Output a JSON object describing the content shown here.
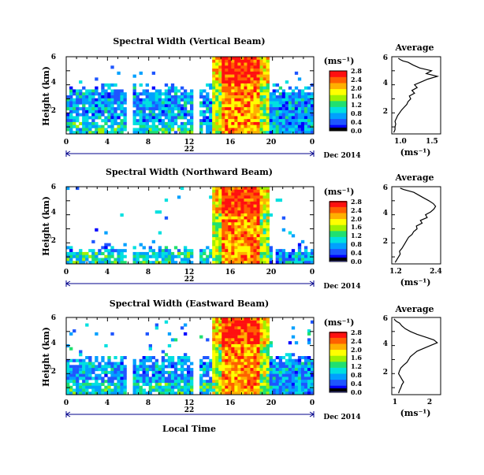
{
  "chart_data": [
    {
      "type": "heatmap",
      "title": "Spectral Width (Vertical Beam)",
      "ylabel": "Height (km)",
      "yticks": [
        "2",
        "4",
        "6"
      ],
      "xticks": [
        "0",
        "4",
        "8",
        "12",
        "16",
        "20",
        "0"
      ],
      "date_label": "22",
      "month_label": "Dec 2014",
      "colorbar": {
        "unit": "(ms⁻¹)",
        "labels": [
          "0.0",
          "0.4",
          "0.8",
          "1.2",
          "1.6",
          "2.0",
          "2.4",
          "2.8"
        ]
      },
      "profile": {
        "title": "Average",
        "xlabel": "(ms⁻¹)",
        "xticks": [
          "1.0",
          "1.5"
        ],
        "yticks": [
          "2",
          "4",
          "6"
        ],
        "xlim": [
          0.85,
          1.6
        ],
        "ylim": [
          0.5,
          6.0
        ],
        "x": [
          0.88,
          0.9,
          0.9,
          0.91,
          0.9,
          0.92,
          0.94,
          0.97,
          1.0,
          1.04,
          1.08,
          1.1,
          1.14,
          1.12,
          1.2,
          1.16,
          1.24,
          1.2,
          1.3,
          1.4,
          1.55,
          1.38,
          1.46,
          1.28,
          1.18,
          1.1,
          1.02,
          0.98,
          0.95
        ],
        "y": [
          0.6,
          0.8,
          1.0,
          1.2,
          1.4,
          1.6,
          1.8,
          2.0,
          2.2,
          2.4,
          2.6,
          2.8,
          3.0,
          3.2,
          3.4,
          3.6,
          3.8,
          4.0,
          4.2,
          4.4,
          4.6,
          4.8,
          5.0,
          5.2,
          5.4,
          5.6,
          5.7,
          5.8,
          5.9
        ]
      }
    },
    {
      "type": "heatmap",
      "title": "Spectral Width (Northward Beam)",
      "ylabel": "Height (km)",
      "yticks": [
        "2",
        "4",
        "6"
      ],
      "xticks": [
        "0",
        "4",
        "8",
        "12",
        "16",
        "20",
        "0"
      ],
      "date_label": "22",
      "month_label": "Dec 2014",
      "colorbar": {
        "unit": "(ms⁻¹)",
        "labels": [
          "0.0",
          "0.4",
          "0.8",
          "1.2",
          "1.6",
          "2.0",
          "2.4",
          "2.8"
        ]
      },
      "profile": {
        "title": "Average",
        "xlabel": "(ms⁻¹)",
        "xticks": [
          "1.2",
          "2.4"
        ],
        "yticks": [
          "2",
          "4",
          "6"
        ],
        "xlim": [
          1.05,
          2.5
        ],
        "ylim": [
          0.5,
          6.0
        ],
        "x": [
          1.15,
          1.2,
          1.25,
          1.3,
          1.28,
          1.35,
          1.4,
          1.45,
          1.5,
          1.55,
          1.65,
          1.7,
          1.8,
          1.78,
          1.95,
          1.9,
          2.1,
          2.05,
          2.2,
          2.3,
          2.35,
          2.28,
          2.15,
          2.0,
          1.85,
          1.7,
          1.55,
          1.4,
          1.3
        ],
        "y": [
          0.6,
          0.8,
          1.0,
          1.2,
          1.4,
          1.6,
          1.8,
          2.0,
          2.2,
          2.4,
          2.6,
          2.8,
          3.0,
          3.2,
          3.4,
          3.6,
          3.8,
          4.0,
          4.2,
          4.4,
          4.6,
          4.8,
          5.0,
          5.2,
          5.4,
          5.6,
          5.7,
          5.8,
          5.9
        ]
      }
    },
    {
      "type": "heatmap",
      "title": "Spectral Width (Eastward Beam)",
      "ylabel": "Height (km)",
      "yticks": [
        "2",
        "4",
        "6"
      ],
      "xticks": [
        "0",
        "4",
        "8",
        "12",
        "16",
        "20",
        "0"
      ],
      "date_label": "22",
      "month_label": "Dec 2014",
      "xlabel": "Local Time",
      "colorbar": {
        "unit": "(ms⁻¹)",
        "labels": [
          "0.0",
          "0.4",
          "0.8",
          "1.2",
          "1.6",
          "2.0",
          "2.4",
          "2.8"
        ]
      },
      "profile": {
        "title": "Average",
        "xlabel": "(ms⁻¹)",
        "xticks": [
          "1",
          "2"
        ],
        "yticks": [
          "2",
          "4",
          "6"
        ],
        "xlim": [
          0.85,
          2.3
        ],
        "ylim": [
          0.5,
          6.0
        ],
        "x": [
          1.05,
          1.08,
          1.12,
          1.15,
          1.2,
          1.15,
          1.1,
          1.05,
          1.08,
          1.12,
          1.2,
          1.3,
          1.35,
          1.4,
          1.5,
          1.6,
          1.8,
          2.0,
          2.2,
          2.1,
          1.85,
          1.6,
          1.4,
          1.25,
          1.15,
          1.08,
          1.0,
          0.95,
          0.92
        ],
        "y": [
          0.6,
          0.8,
          1.0,
          1.2,
          1.4,
          1.6,
          1.8,
          2.0,
          2.2,
          2.4,
          2.6,
          2.8,
          3.0,
          3.2,
          3.4,
          3.6,
          3.8,
          4.0,
          4.2,
          4.4,
          4.6,
          4.8,
          5.0,
          5.2,
          5.4,
          5.6,
          5.7,
          5.8,
          5.9
        ]
      }
    }
  ],
  "colorscale": [
    "#0000ff",
    "#1e56ff",
    "#00a0ff",
    "#00e0e0",
    "#20e070",
    "#a0f000",
    "#ffff00",
    "#ffb000",
    "#ff6000",
    "#ff1010"
  ]
}
